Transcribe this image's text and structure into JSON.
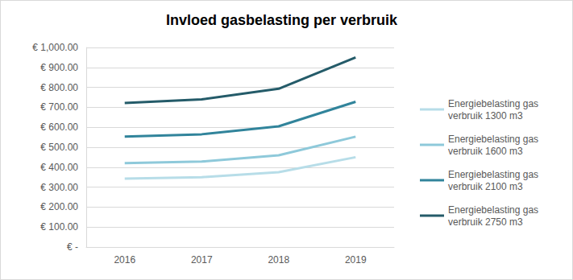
{
  "chart_data": {
    "type": "line",
    "title": "Invloed gasbelasting per verbruik",
    "categories": [
      "2016",
      "2017",
      "2018",
      "2019"
    ],
    "series": [
      {
        "name": "Energiebelasting gas verbruik 1300 m3",
        "color": "#b7dde8",
        "values": [
          343,
          350,
          375,
          450
        ]
      },
      {
        "name": "Energiebelasting gas verbruik 1600 m3",
        "color": "#8ec9da",
        "values": [
          420,
          428,
          460,
          553
        ]
      },
      {
        "name": "Energiebelasting gas verbruik 2100 m3",
        "color": "#31849b",
        "values": [
          553,
          565,
          605,
          728
        ]
      },
      {
        "name": "Energiebelasting gas verbruik 2750 m3",
        "color": "#245b69",
        "values": [
          722,
          740,
          793,
          950
        ]
      }
    ],
    "ylim": [
      0,
      1000
    ],
    "yticks": [
      {
        "value": 0,
        "label": "€ -"
      },
      {
        "value": 100,
        "label": "€ 100.00"
      },
      {
        "value": 200,
        "label": "€ 200.00"
      },
      {
        "value": 300,
        "label": "€ 300.00"
      },
      {
        "value": 400,
        "label": "€ 400.00"
      },
      {
        "value": 500,
        "label": "€ 500.00"
      },
      {
        "value": 600,
        "label": "€ 600.00"
      },
      {
        "value": 700,
        "label": "€ 700.00"
      },
      {
        "value": 800,
        "label": "€ 800.00"
      },
      {
        "value": 900,
        "label": "€ 900.00"
      },
      {
        "value": 1000,
        "label": "€ 1,000.00"
      }
    ],
    "grid": true,
    "legend": "right"
  }
}
